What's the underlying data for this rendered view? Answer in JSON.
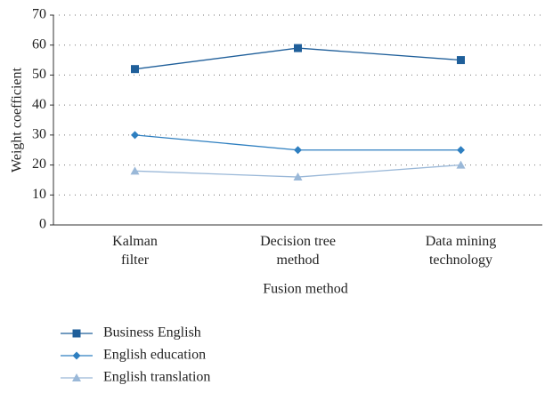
{
  "chart_data": {
    "type": "line",
    "xlabel": "Fusion method",
    "ylabel": "Weight coefficient",
    "categories": [
      "Kalman\nfilter",
      "Decision tree\nmethod",
      "Data mining\ntechnology"
    ],
    "series": [
      {
        "name": "Business English",
        "color": "#1f5f9a",
        "marker": "square",
        "values": [
          52,
          59,
          55
        ]
      },
      {
        "name": "English education",
        "color": "#2e7fc0",
        "marker": "diamond",
        "values": [
          30,
          25,
          25
        ]
      },
      {
        "name": "English translation",
        "color": "#9ab8d8",
        "marker": "triangle",
        "values": [
          18,
          16,
          20
        ]
      }
    ],
    "ylim": [
      0,
      70
    ],
    "yticks": [
      0,
      10,
      20,
      30,
      40,
      50,
      60,
      70
    ],
    "grid": true,
    "legend": "bottom-left"
  }
}
